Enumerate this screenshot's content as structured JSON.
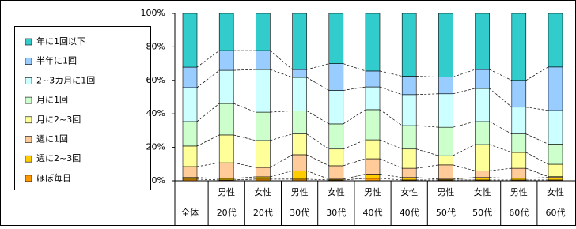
{
  "chart_data": {
    "type": "stacked_bar_100",
    "categories": [
      [
        "全体"
      ],
      [
        "男性",
        "20代"
      ],
      [
        "女性",
        "20代"
      ],
      [
        "男性",
        "30代"
      ],
      [
        "女性",
        "30代"
      ],
      [
        "男性",
        "40代"
      ],
      [
        "女性",
        "40代"
      ],
      [
        "男性",
        "50代"
      ],
      [
        "女性",
        "50代"
      ],
      [
        "男性",
        "60代"
      ],
      [
        "女性",
        "60代"
      ]
    ],
    "series": [
      {
        "name": "ほぼ毎日",
        "color": "#ff9900",
        "values": [
          1,
          0.5,
          1,
          1,
          0.5,
          1.5,
          0.5,
          0.5,
          0.5,
          0.5,
          0.5
        ]
      },
      {
        "name": "週に2~3回",
        "color": "#ffcc00",
        "values": [
          1,
          0.9,
          1.4,
          5,
          0.5,
          2.5,
          1.5,
          0.5,
          1.5,
          1,
          1.5
        ]
      },
      {
        "name": "週に1回",
        "color": "#ffcc99",
        "values": [
          6.5,
          9.4,
          5.6,
          9.6,
          8,
          9.2,
          5.5,
          8.5,
          4,
          6,
          0.5
        ]
      },
      {
        "name": "月に2~3回",
        "color": "#ffff99",
        "values": [
          12.3,
          16.6,
          16.1,
          12.4,
          10,
          11.3,
          11.5,
          5.5,
          15.7,
          9.5,
          7.4
        ]
      },
      {
        "name": "月に1回",
        "color": "#ccffcc",
        "values": [
          14.6,
          18.8,
          16.9,
          13.8,
          15,
          18,
          14,
          17,
          13.7,
          11,
          12.1
        ]
      },
      {
        "name": "2~3カ月に1回",
        "color": "#ccffff",
        "values": [
          20.3,
          19.8,
          25.5,
          20,
          20,
          13.6,
          18.5,
          20,
          19.8,
          16,
          20
        ]
      },
      {
        "name": "半年に1回",
        "color": "#99ccff",
        "values": [
          12.2,
          11.8,
          11.3,
          4.7,
          16,
          9.5,
          11,
          10,
          11.3,
          16,
          26
        ]
      },
      {
        "name": "年に1回以下",
        "color": "#33cccc",
        "values": [
          32.1,
          22.2,
          22.2,
          33.5,
          30,
          34.4,
          37.5,
          38,
          33.5,
          40,
          32
        ]
      }
    ],
    "ylim": [
      0,
      100
    ],
    "yticks": [
      {
        "value": 0,
        "label": "0%"
      },
      {
        "value": 20,
        "label": "20%"
      },
      {
        "value": 40,
        "label": "40%"
      },
      {
        "value": 60,
        "label": "60%"
      },
      {
        "value": 80,
        "label": "80%"
      },
      {
        "value": 100,
        "label": "100%"
      }
    ],
    "legend": "left"
  }
}
